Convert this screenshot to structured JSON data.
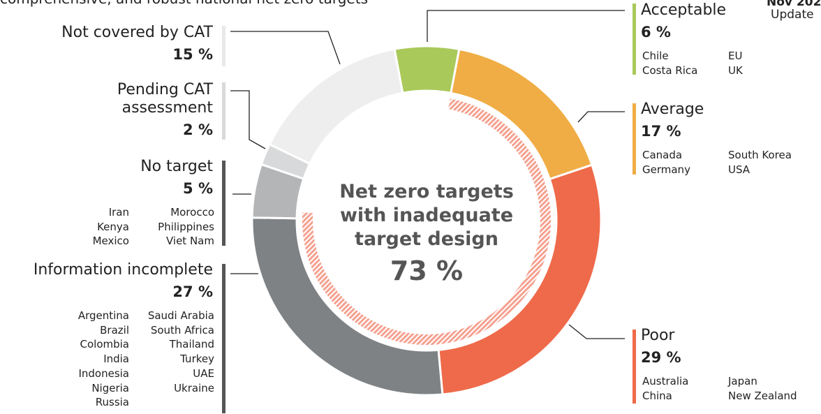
{
  "chart_data": {
    "type": "donut",
    "subtitle": "comprehensive, and robust national net zero targets",
    "date_label": "Nov 202",
    "update_label": "Update",
    "categories": [
      "Acceptable",
      "Average",
      "Poor",
      "Information incomplete",
      "No target",
      "Pending CAT assessment",
      "Not covered by CAT"
    ],
    "values": [
      6,
      17,
      29,
      27,
      5,
      2,
      15
    ],
    "value_labels": [
      "6 %",
      "17 %",
      "29 %",
      "27 %",
      "5 %",
      "2 %",
      "15 %"
    ],
    "colors": [
      "#a9c95a",
      "#f0ad45",
      "#ef6a4a",
      "#7f8285",
      "#b3b5b7",
      "#d8d9da",
      "#eeeeee"
    ],
    "countries": [
      [
        [
          "Chile",
          "Costa Rica"
        ],
        [
          "EU",
          "UK"
        ]
      ],
      [
        [
          "Canada",
          "Germany"
        ],
        [
          "South Korea",
          "USA"
        ]
      ],
      [
        [
          "Australia",
          "China"
        ],
        [
          "Japan",
          "New Zealand"
        ]
      ],
      [
        [
          "Argentina",
          "Brazil",
          "Colombia",
          "India",
          "Indonesia",
          "Nigeria",
          "Russia"
        ],
        [
          "Saudi Arabia",
          "South Africa",
          "Thailand",
          "Turkey",
          "UAE",
          "Ukraine"
        ]
      ],
      [
        [
          "Iran",
          "Kenya",
          "Mexico"
        ],
        [
          "Morocco",
          "Philippines",
          "Viet Nam"
        ]
      ],
      [],
      []
    ],
    "center_text": "Net zero targets with inadequate target design",
    "center_value": 73,
    "center_value_label": "73 %",
    "center_color": "#f4a190"
  }
}
